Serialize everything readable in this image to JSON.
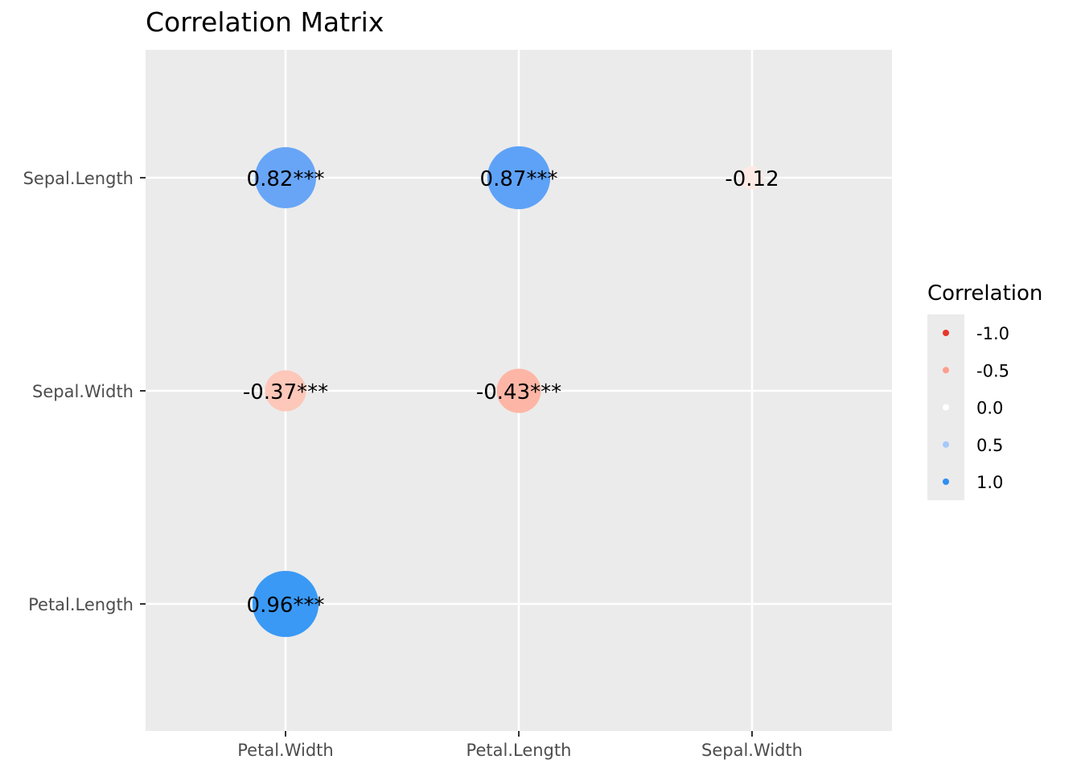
{
  "chart_data": {
    "type": "scatter",
    "title": "Correlation Matrix",
    "xlabel": "",
    "ylabel": "",
    "x_categories": [
      "Petal.Width",
      "Petal.Length",
      "Sepal.Width"
    ],
    "y_categories": [
      "Sepal.Length",
      "Sepal.Width",
      "Petal.Length"
    ],
    "cells": [
      {
        "x": "Petal.Width",
        "y": "Sepal.Length",
        "value": 0.82,
        "label": "0.82***",
        "color": "#68a5f6"
      },
      {
        "x": "Petal.Length",
        "y": "Sepal.Length",
        "value": 0.87,
        "label": "0.87***",
        "color": "#5ea2f7"
      },
      {
        "x": "Sepal.Width",
        "y": "Sepal.Length",
        "value": -0.12,
        "label": "-0.12",
        "color": "#fdeae5"
      },
      {
        "x": "Petal.Width",
        "y": "Sepal.Width",
        "value": -0.37,
        "label": "-0.37***",
        "color": "#fdc7b9"
      },
      {
        "x": "Petal.Length",
        "y": "Sepal.Width",
        "value": -0.43,
        "label": "-0.43***",
        "color": "#fdb6a6"
      },
      {
        "x": "Petal.Width",
        "y": "Petal.Length",
        "value": 0.96,
        "label": "0.96***",
        "color": "#3a99f5"
      }
    ],
    "legend": {
      "title": "Correlation",
      "position": "right",
      "entries": [
        {
          "label": "-1.0",
          "color": "#e8372b"
        },
        {
          "label": "-0.5",
          "color": "#fc9e8f"
        },
        {
          "label": "0.0",
          "color": "#ffffff"
        },
        {
          "label": "0.5",
          "color": "#a6c9fb"
        },
        {
          "label": "1.0",
          "color": "#2f8ff3"
        }
      ]
    },
    "grid": true,
    "panel_background": "#ebebeb",
    "grid_color": "#ffffff"
  }
}
